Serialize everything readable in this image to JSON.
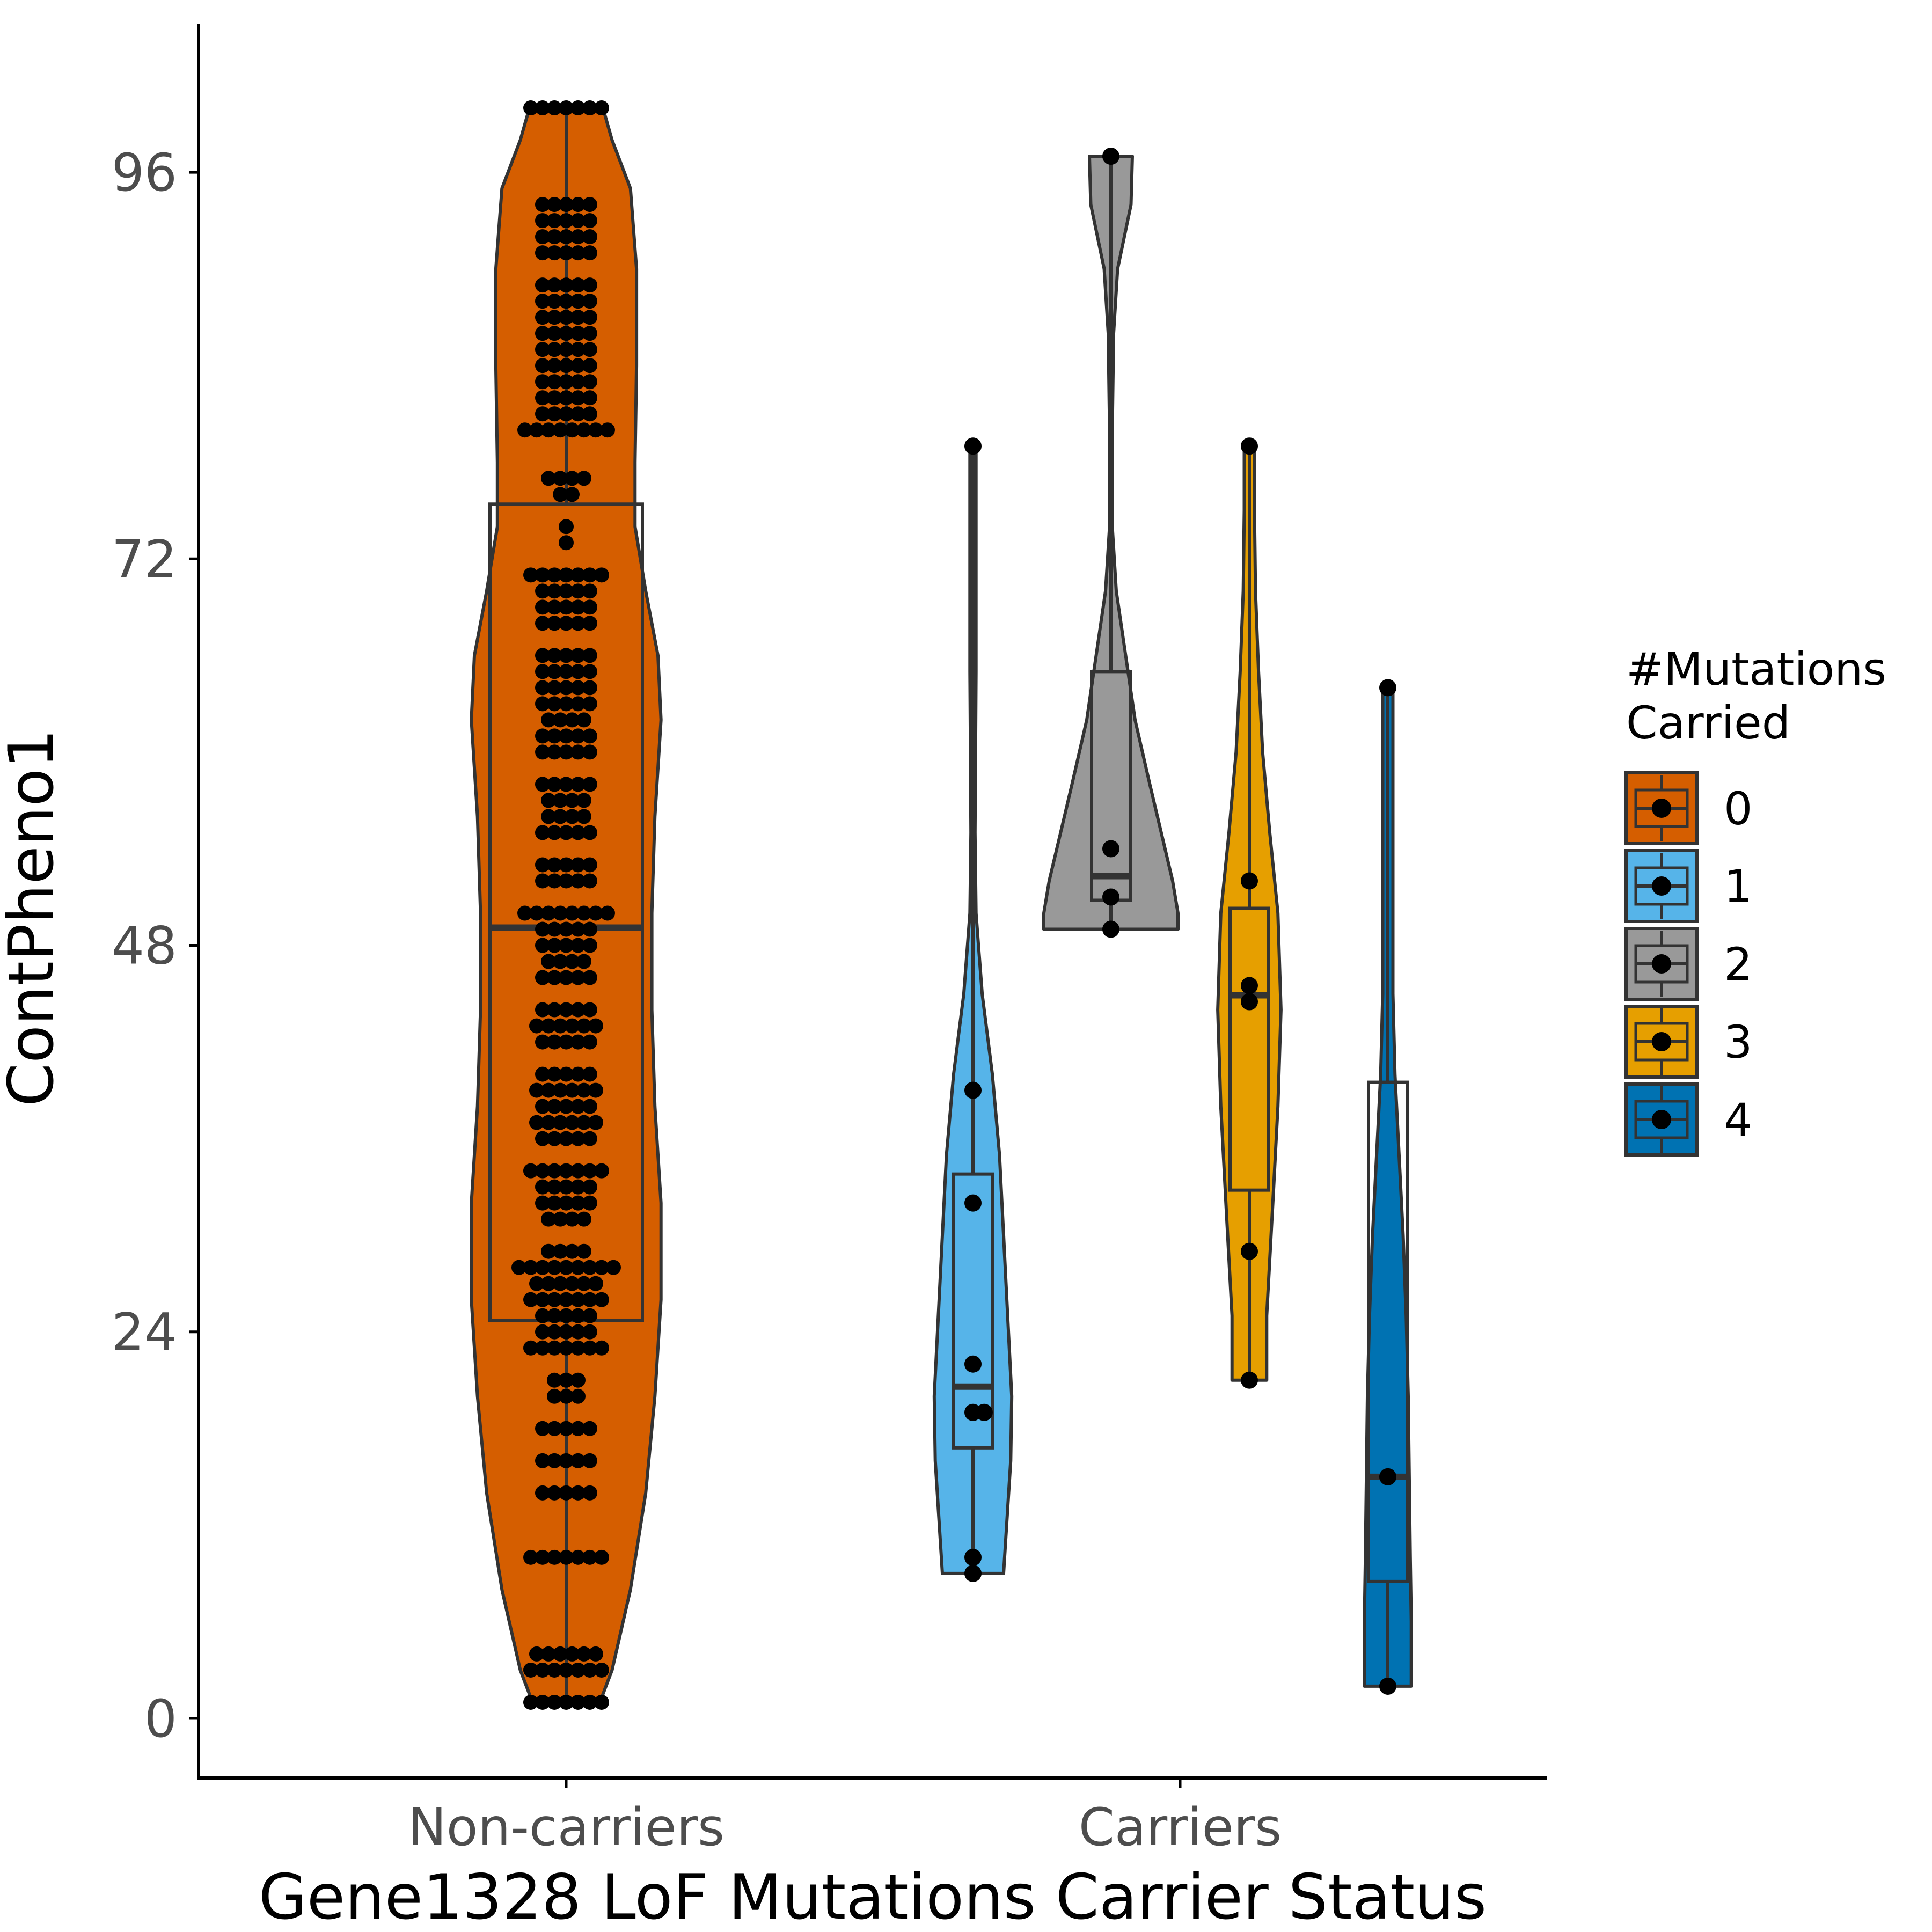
{
  "chart_data": {
    "type": "violin",
    "title": "",
    "xlabel": "Gene1328 LoF Mutations Carrier Status",
    "ylabel": "ContPheno1",
    "y_ticks": [
      0,
      24,
      48,
      72,
      96
    ],
    "ylim": [
      -3.7,
      105.2
    ],
    "categories": [
      "Non-carriers",
      "Carriers"
    ],
    "legend": {
      "title_line1": "#Mutations",
      "title_line2": "Carried",
      "placement": "right",
      "entries": [
        "0",
        "1",
        "2",
        "3",
        "4"
      ]
    },
    "colors": {
      "0": "#D55E00",
      "1": "#56B4E9",
      "2": "#999999",
      "3": "#E69F00",
      "4": "#0072B2",
      "outline": "#333333",
      "points": "#000000"
    },
    "groups": [
      {
        "mutations": "0",
        "category": "Non-carriers",
        "box": {
          "q1": 24.7,
          "median": 49.1,
          "q3": 75.4
        },
        "range": [
          1,
          100
        ],
        "violin": [
          [
            1,
            0.22
          ],
          [
            3,
            0.3
          ],
          [
            8,
            0.42
          ],
          [
            14,
            0.52
          ],
          [
            20,
            0.58
          ],
          [
            26,
            0.62
          ],
          [
            32,
            0.62
          ],
          [
            38,
            0.58
          ],
          [
            44,
            0.56
          ],
          [
            50,
            0.56
          ],
          [
            56,
            0.58
          ],
          [
            62,
            0.62
          ],
          [
            66,
            0.6
          ],
          [
            70,
            0.52
          ],
          [
            74,
            0.45
          ],
          [
            78,
            0.45
          ],
          [
            84,
            0.46
          ],
          [
            90,
            0.46
          ],
          [
            95,
            0.42
          ],
          [
            98,
            0.3
          ],
          [
            100,
            0.24
          ]
        ],
        "points": [
          [
            1,
            7
          ],
          [
            3,
            7
          ],
          [
            4,
            6
          ],
          [
            10,
            7
          ],
          [
            14,
            5
          ],
          [
            16,
            5
          ],
          [
            18,
            5
          ],
          [
            20,
            3
          ],
          [
            21,
            3
          ],
          [
            23,
            7
          ],
          [
            24,
            5
          ],
          [
            25,
            5
          ],
          [
            26,
            7
          ],
          [
            27,
            6
          ],
          [
            28,
            9
          ],
          [
            29,
            4
          ],
          [
            31,
            4
          ],
          [
            32,
            5
          ],
          [
            33,
            5
          ],
          [
            34,
            7
          ],
          [
            36,
            5
          ],
          [
            37,
            6
          ],
          [
            38,
            5
          ],
          [
            39,
            6
          ],
          [
            40,
            5
          ],
          [
            42,
            5
          ],
          [
            43,
            6
          ],
          [
            44,
            5
          ],
          [
            46,
            5
          ],
          [
            47,
            4
          ],
          [
            48,
            5
          ],
          [
            49,
            5
          ],
          [
            50,
            8
          ],
          [
            52,
            5
          ],
          [
            53,
            5
          ],
          [
            55,
            5
          ],
          [
            56,
            4
          ],
          [
            57,
            4
          ],
          [
            58,
            5
          ],
          [
            60,
            5
          ],
          [
            61,
            5
          ],
          [
            62,
            4
          ],
          [
            63,
            5
          ],
          [
            64,
            5
          ],
          [
            65,
            5
          ],
          [
            66,
            5
          ],
          [
            68,
            5
          ],
          [
            69,
            5
          ],
          [
            70,
            5
          ],
          [
            71,
            7
          ],
          [
            73,
            1
          ],
          [
            74,
            1
          ],
          [
            76,
            2
          ],
          [
            77,
            4
          ],
          [
            80,
            8
          ],
          [
            81,
            5
          ],
          [
            82,
            5
          ],
          [
            83,
            5
          ],
          [
            84,
            5
          ],
          [
            85,
            5
          ],
          [
            86,
            5
          ],
          [
            87,
            5
          ],
          [
            88,
            5
          ],
          [
            89,
            5
          ],
          [
            91,
            5
          ],
          [
            92,
            5
          ],
          [
            93,
            5
          ],
          [
            94,
            5
          ],
          [
            100,
            7
          ]
        ]
      },
      {
        "mutations": "1",
        "category": "Carriers",
        "box": {
          "q1": 16.8,
          "median": 20.6,
          "q3": 33.8
        },
        "range": [
          9,
          79
        ],
        "violin": [
          [
            9,
            0.6
          ],
          [
            12,
            0.66
          ],
          [
            16,
            0.74
          ],
          [
            20,
            0.76
          ],
          [
            25,
            0.68
          ],
          [
            30,
            0.6
          ],
          [
            35,
            0.52
          ],
          [
            40,
            0.38
          ],
          [
            45,
            0.18
          ],
          [
            50,
            0.06
          ],
          [
            55,
            0.04
          ],
          [
            60,
            0.05
          ],
          [
            65,
            0.06
          ],
          [
            70,
            0.06
          ],
          [
            75,
            0.06
          ],
          [
            79,
            0.06
          ]
        ],
        "points": [
          [
            9.0,
            0
          ],
          [
            10.0,
            0
          ],
          [
            19.0,
            0
          ],
          [
            19.0,
            0.22
          ],
          [
            22.0,
            0
          ],
          [
            32.0,
            0
          ],
          [
            39.0,
            0
          ],
          [
            79.0,
            0
          ]
        ]
      },
      {
        "mutations": "2",
        "category": "Carriers",
        "box": {
          "q1": 50.8,
          "median": 52.3,
          "q3": 65.0
        },
        "range": [
          49,
          97
        ],
        "violin": [
          [
            49,
            1.0
          ],
          [
            50,
            1.0
          ],
          [
            52,
            0.92
          ],
          [
            55,
            0.75
          ],
          [
            58,
            0.58
          ],
          [
            62,
            0.36
          ],
          [
            66,
            0.22
          ],
          [
            70,
            0.08
          ],
          [
            74,
            0.02
          ],
          [
            80,
            0.02
          ],
          [
            86,
            0.04
          ],
          [
            90,
            0.1
          ],
          [
            94,
            0.3
          ],
          [
            97,
            0.32
          ]
        ],
        "points": [
          [
            49.0,
            0
          ],
          [
            51.0,
            0
          ],
          [
            54.0,
            0
          ],
          [
            97.0,
            0
          ]
        ]
      },
      {
        "mutations": "3",
        "category": "Carriers",
        "box": {
          "q1": 32.8,
          "median": 44.9,
          "q3": 50.3
        },
        "range": [
          21,
          79
        ],
        "violin": [
          [
            21,
            0.34
          ],
          [
            25,
            0.34
          ],
          [
            32,
            0.46
          ],
          [
            38,
            0.56
          ],
          [
            44,
            0.62
          ],
          [
            50,
            0.56
          ],
          [
            55,
            0.4
          ],
          [
            60,
            0.26
          ],
          [
            65,
            0.18
          ],
          [
            70,
            0.12
          ],
          [
            75,
            0.1
          ],
          [
            79,
            0.1
          ]
        ],
        "points": [
          [
            21.0,
            0
          ],
          [
            29.0,
            0
          ],
          [
            44.5,
            0
          ],
          [
            45.5,
            0
          ],
          [
            52.0,
            0
          ],
          [
            79.0,
            0
          ]
        ]
      },
      {
        "mutations": "4",
        "category": "Carriers",
        "box": {
          "q1": 8.5,
          "median": 15.0,
          "q3": 39.5
        },
        "range": [
          2,
          64
        ],
        "violin": [
          [
            2,
            0.46
          ],
          [
            6,
            0.46
          ],
          [
            10,
            0.44
          ],
          [
            15,
            0.42
          ],
          [
            20,
            0.4
          ],
          [
            25,
            0.36
          ],
          [
            30,
            0.3
          ],
          [
            35,
            0.22
          ],
          [
            40,
            0.14
          ],
          [
            45,
            0.1
          ],
          [
            50,
            0.1
          ],
          [
            55,
            0.1
          ],
          [
            60,
            0.1
          ],
          [
            64,
            0.1
          ]
        ],
        "points": [
          [
            2.0,
            0
          ],
          [
            15.0,
            0
          ],
          [
            64.0,
            0
          ]
        ]
      }
    ]
  }
}
